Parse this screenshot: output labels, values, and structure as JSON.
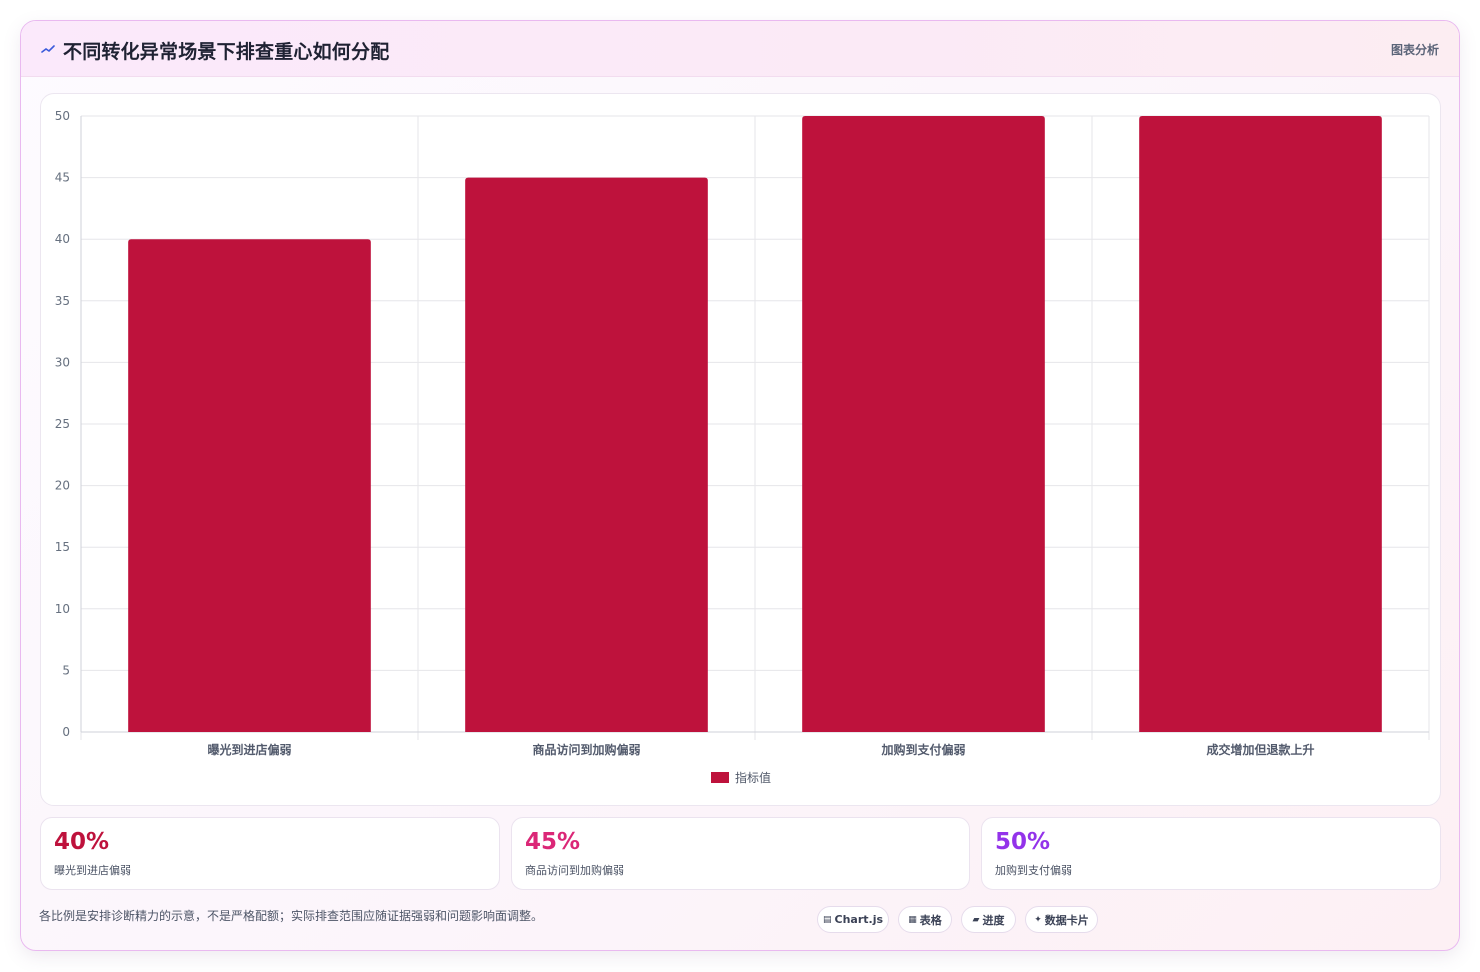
{
  "header": {
    "icon": "trend-line-icon",
    "title": "不同转化异常场景下排查重心如何分配",
    "right_label": "图表分析"
  },
  "chart_data": {
    "type": "bar",
    "categories": [
      "曝光到进店偏弱",
      "商品访问到加购偏弱",
      "加购到支付偏弱",
      "成交增加但退款上升"
    ],
    "series": [
      {
        "name": "指标值",
        "values": [
          40,
          45,
          50,
          50
        ],
        "color": "#be123c"
      }
    ],
    "ylim": [
      0,
      50
    ],
    "yticks": [
      0,
      5,
      10,
      15,
      20,
      25,
      30,
      35,
      40,
      45,
      50
    ],
    "grid": true,
    "legend": "bottom"
  },
  "stats": [
    {
      "value": "40%",
      "label": "曝光到进店偏弱",
      "color": "#be123c"
    },
    {
      "value": "45%",
      "label": "商品访问到加购偏弱",
      "color": "#db2777"
    },
    {
      "value": "50%",
      "label": "加购到支付偏弱",
      "color": "#9333ea"
    }
  ],
  "footer": {
    "note": "各比例是安排诊断精力的示意，不是严格配额；实际排查范围应随证据强弱和问题影响面调整。",
    "chips": [
      {
        "icon": "chart-icon",
        "glyph": "▤",
        "label": "Chart.js"
      },
      {
        "icon": "table-icon",
        "glyph": "▦",
        "label": "表格"
      },
      {
        "icon": "progress-icon",
        "glyph": "▰",
        "label": "进度"
      },
      {
        "icon": "sparkle-icon",
        "glyph": "✦",
        "label": "数据卡片"
      }
    ]
  }
}
